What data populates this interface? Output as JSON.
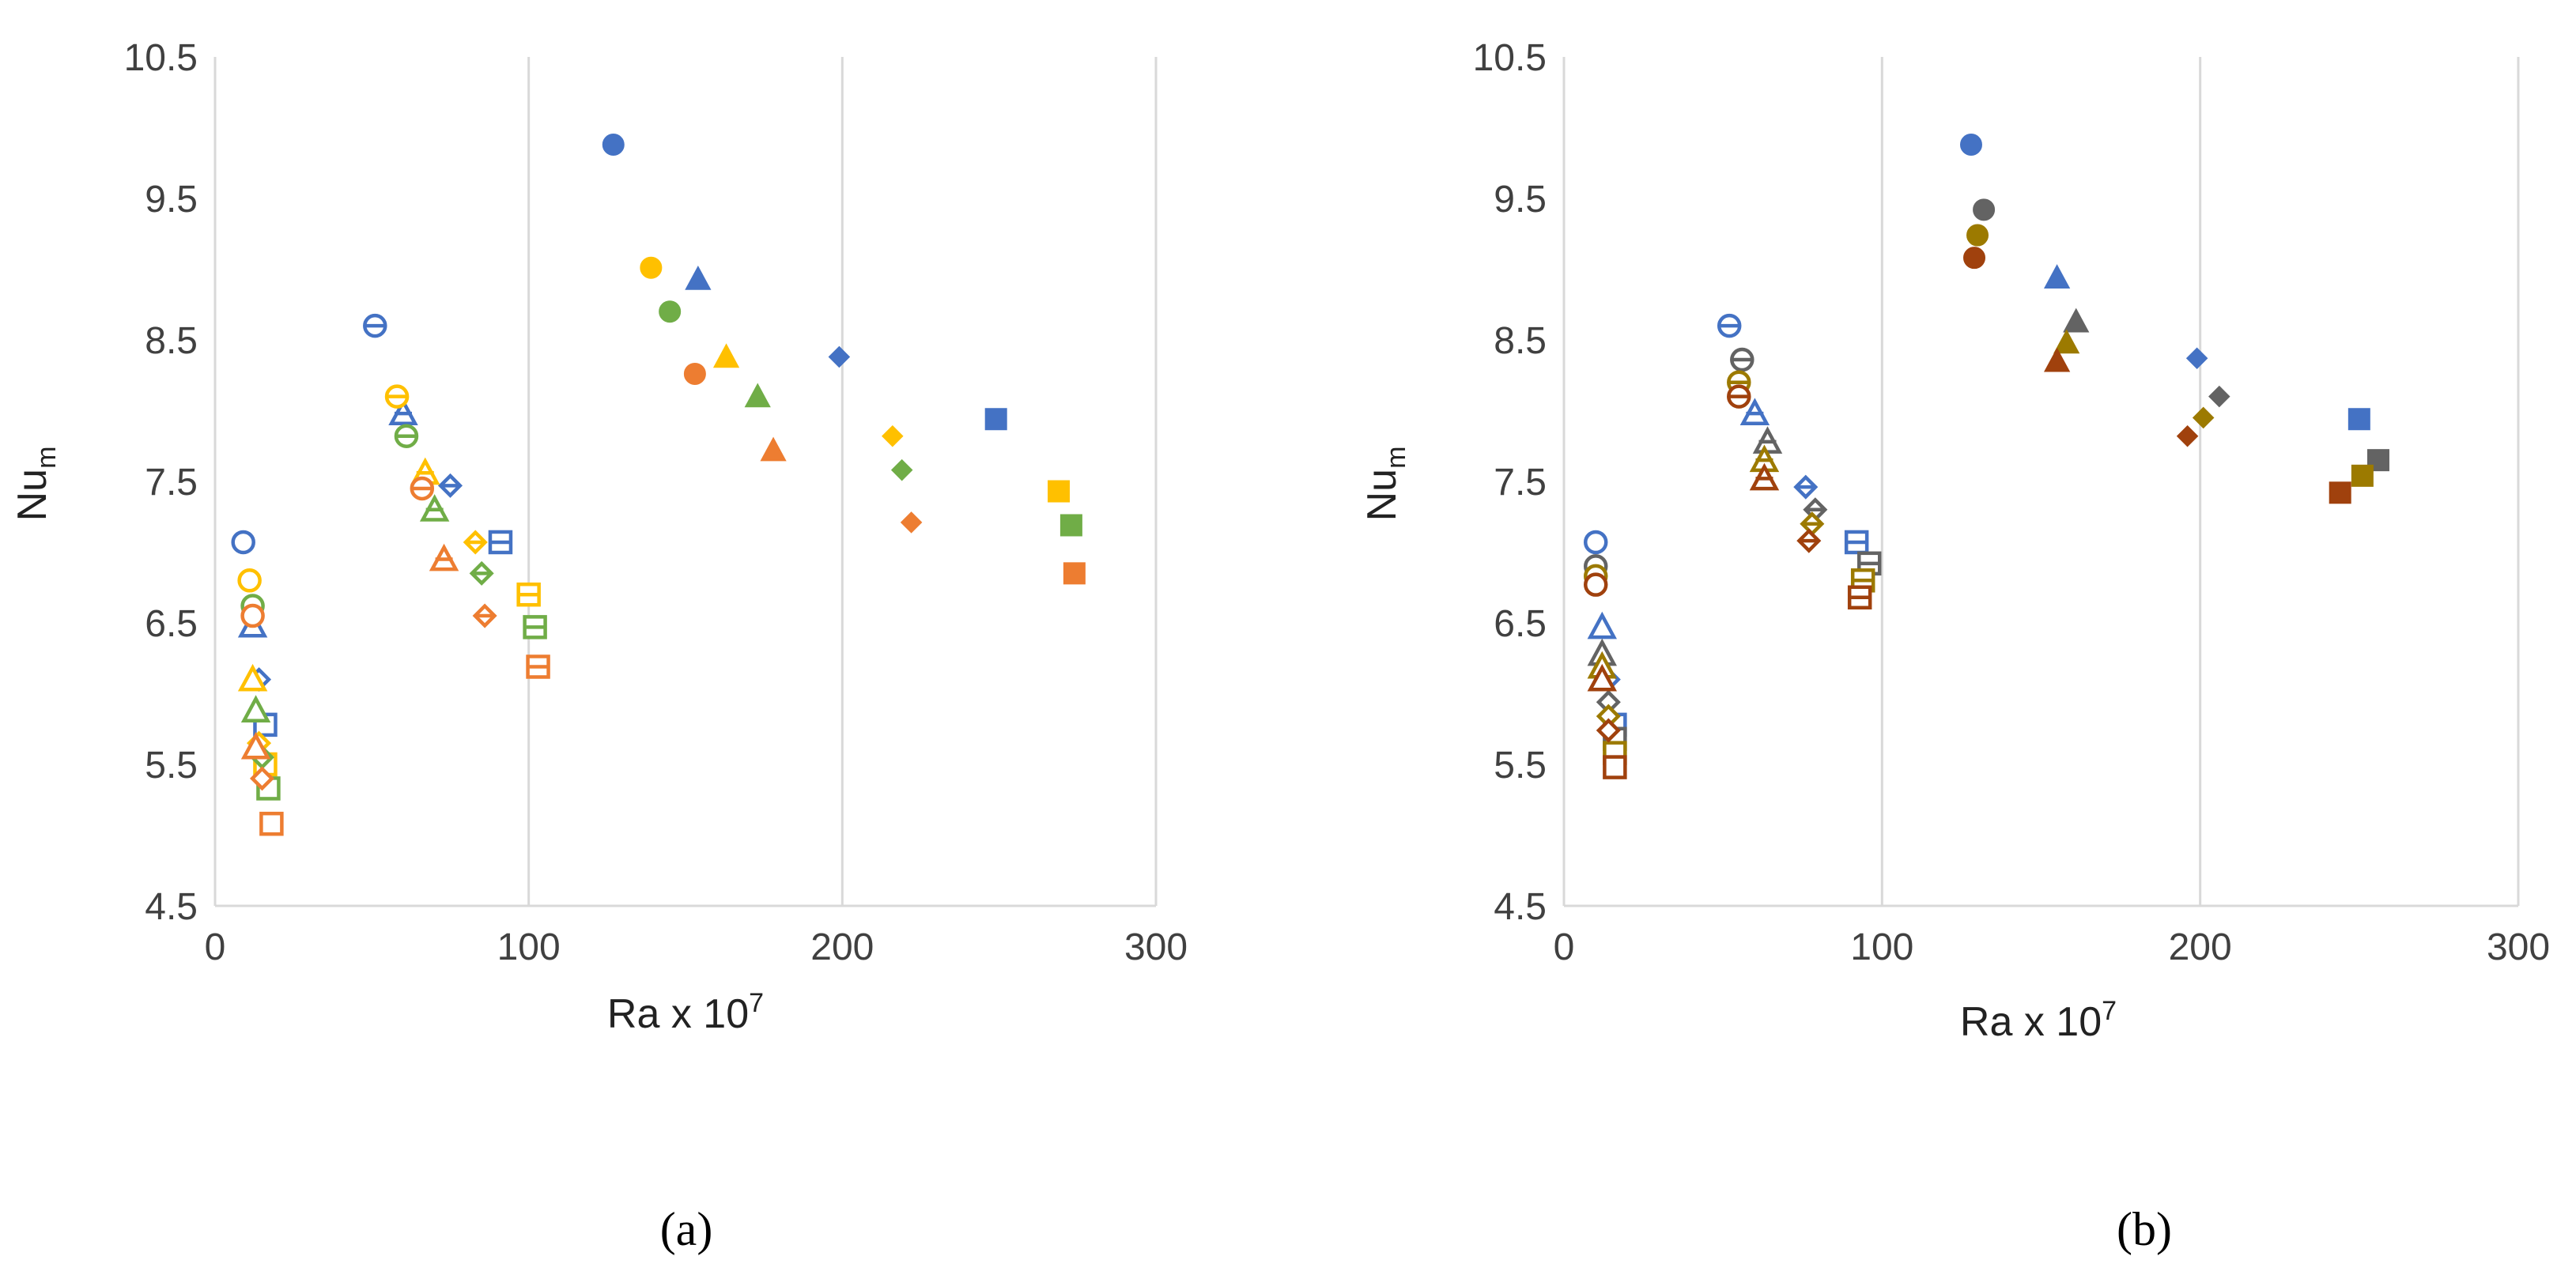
{
  "chart_data": [
    {
      "type": "scatter",
      "panel_label": "(a)",
      "xlabel": "Ra  x 10",
      "xlabel_exponent": "7",
      "ylabel": "Nu",
      "ylabel_subscript": "m",
      "xlim": [
        0,
        300
      ],
      "ylim": [
        4.5,
        10.5
      ],
      "xticks": [
        "0",
        "100",
        "200",
        "300"
      ],
      "yticks": [
        "4.5",
        "5.5",
        "6.5",
        "7.5",
        "8.5",
        "9.5",
        "10.5"
      ],
      "grid": "vertical",
      "legend": "none",
      "colors": {
        "blue": "#4472c4",
        "yellow": "#ffc000",
        "green": "#70ad47",
        "orange": "#ed7d31"
      },
      "series": [
        {
          "color": "blue",
          "filled": false,
          "points": [
            {
              "marker": "circle",
              "x": 9,
              "y": 7.07
            },
            {
              "marker": "triangle",
              "x": 12,
              "y": 6.48
            },
            {
              "marker": "diamond",
              "x": 14,
              "y": 6.1
            },
            {
              "marker": "square",
              "x": 16,
              "y": 5.78
            }
          ]
        },
        {
          "color": "yellow",
          "filled": false,
          "points": [
            {
              "marker": "circle",
              "x": 11,
              "y": 6.8
            },
            {
              "marker": "triangle",
              "x": 12,
              "y": 6.1
            },
            {
              "marker": "diamond",
              "x": 14,
              "y": 5.65
            },
            {
              "marker": "square",
              "x": 16,
              "y": 5.5
            }
          ]
        },
        {
          "color": "green",
          "filled": false,
          "points": [
            {
              "marker": "circle",
              "x": 12,
              "y": 6.62
            },
            {
              "marker": "triangle",
              "x": 13,
              "y": 5.88
            },
            {
              "marker": "diamond",
              "x": 15,
              "y": 5.55
            },
            {
              "marker": "square",
              "x": 17,
              "y": 5.33
            }
          ]
        },
        {
          "color": "orange",
          "filled": false,
          "points": [
            {
              "marker": "circle",
              "x": 12,
              "y": 6.55
            },
            {
              "marker": "triangle",
              "x": 13,
              "y": 5.62
            },
            {
              "marker": "diamond",
              "x": 15,
              "y": 5.4
            },
            {
              "marker": "square",
              "x": 18,
              "y": 5.08
            }
          ]
        },
        {
          "color": "blue",
          "filled": false,
          "points": [
            {
              "marker": "circle-bar",
              "x": 51,
              "y": 8.6
            },
            {
              "marker": "triangle-bar",
              "x": 60,
              "y": 7.98
            },
            {
              "marker": "diamond-bar",
              "x": 75,
              "y": 7.47
            },
            {
              "marker": "square-bar",
              "x": 91,
              "y": 7.07
            }
          ]
        },
        {
          "color": "yellow",
          "filled": false,
          "points": [
            {
              "marker": "circle-bar",
              "x": 58,
              "y": 8.1
            },
            {
              "marker": "triangle-bar",
              "x": 67,
              "y": 7.56
            },
            {
              "marker": "diamond-bar",
              "x": 83,
              "y": 7.07
            },
            {
              "marker": "square-bar",
              "x": 100,
              "y": 6.7
            }
          ]
        },
        {
          "color": "green",
          "filled": false,
          "points": [
            {
              "marker": "circle-bar",
              "x": 61,
              "y": 7.82
            },
            {
              "marker": "triangle-bar",
              "x": 70,
              "y": 7.3
            },
            {
              "marker": "diamond-bar",
              "x": 85,
              "y": 6.85
            },
            {
              "marker": "square-bar",
              "x": 102,
              "y": 6.47
            }
          ]
        },
        {
          "color": "orange",
          "filled": false,
          "points": [
            {
              "marker": "circle-bar",
              "x": 66,
              "y": 7.45
            },
            {
              "marker": "triangle-bar",
              "x": 73,
              "y": 6.95
            },
            {
              "marker": "diamond-bar",
              "x": 86,
              "y": 6.55
            },
            {
              "marker": "square-bar",
              "x": 103,
              "y": 6.19
            }
          ]
        },
        {
          "color": "blue",
          "filled": true,
          "points": [
            {
              "marker": "circle",
              "x": 127,
              "y": 9.88
            },
            {
              "marker": "triangle",
              "x": 154,
              "y": 8.93
            },
            {
              "marker": "diamond",
              "x": 199,
              "y": 8.38
            },
            {
              "marker": "square",
              "x": 249,
              "y": 7.94
            }
          ]
        },
        {
          "color": "yellow",
          "filled": true,
          "points": [
            {
              "marker": "circle",
              "x": 139,
              "y": 9.01
            },
            {
              "marker": "triangle",
              "x": 163,
              "y": 8.38
            },
            {
              "marker": "diamond",
              "x": 216,
              "y": 7.82
            },
            {
              "marker": "square",
              "x": 269,
              "y": 7.43
            }
          ]
        },
        {
          "color": "green",
          "filled": true,
          "points": [
            {
              "marker": "circle",
              "x": 145,
              "y": 8.7
            },
            {
              "marker": "triangle",
              "x": 173,
              "y": 8.1
            },
            {
              "marker": "diamond",
              "x": 219,
              "y": 7.58
            },
            {
              "marker": "square",
              "x": 273,
              "y": 7.19
            }
          ]
        },
        {
          "color": "orange",
          "filled": true,
          "points": [
            {
              "marker": "circle",
              "x": 153,
              "y": 8.26
            },
            {
              "marker": "triangle",
              "x": 178,
              "y": 7.72
            },
            {
              "marker": "diamond",
              "x": 222,
              "y": 7.21
            },
            {
              "marker": "square",
              "x": 274,
              "y": 6.85
            }
          ]
        }
      ]
    },
    {
      "type": "scatter",
      "panel_label": "(b)",
      "xlabel": "Ra  x 10",
      "xlabel_exponent": "7",
      "ylabel": "Nu",
      "ylabel_subscript": "m",
      "xlim": [
        0,
        300
      ],
      "ylim": [
        4.5,
        10.5
      ],
      "xticks": [
        "0",
        "100",
        "200",
        "300"
      ],
      "yticks": [
        "4.5",
        "5.5",
        "6.5",
        "7.5",
        "8.5",
        "9.5",
        "10.5"
      ],
      "grid": "vertical",
      "legend": "none",
      "colors": {
        "blue": "#4472c4",
        "olive": "#9c7a00",
        "gray": "#636363",
        "brown": "#a0410d"
      },
      "series": [
        {
          "color": "blue",
          "filled": false,
          "points": [
            {
              "marker": "circle",
              "x": 10,
              "y": 7.07
            },
            {
              "marker": "triangle",
              "x": 12,
              "y": 6.47
            },
            {
              "marker": "diamond",
              "x": 14,
              "y": 6.1
            },
            {
              "marker": "square",
              "x": 16,
              "y": 5.78
            }
          ]
        },
        {
          "color": "gray",
          "filled": false,
          "points": [
            {
              "marker": "circle",
              "x": 10,
              "y": 6.9
            },
            {
              "marker": "triangle",
              "x": 12,
              "y": 6.28
            },
            {
              "marker": "diamond",
              "x": 14,
              "y": 5.94
            },
            {
              "marker": "square",
              "x": 16,
              "y": 5.68
            }
          ]
        },
        {
          "color": "olive",
          "filled": false,
          "points": [
            {
              "marker": "circle",
              "x": 10,
              "y": 6.83
            },
            {
              "marker": "triangle",
              "x": 12,
              "y": 6.19
            },
            {
              "marker": "diamond",
              "x": 14,
              "y": 5.84
            },
            {
              "marker": "square",
              "x": 16,
              "y": 5.58
            }
          ]
        },
        {
          "color": "brown",
          "filled": false,
          "points": [
            {
              "marker": "circle",
              "x": 10,
              "y": 6.77
            },
            {
              "marker": "triangle",
              "x": 12,
              "y": 6.1
            },
            {
              "marker": "diamond",
              "x": 14,
              "y": 5.74
            },
            {
              "marker": "square",
              "x": 16,
              "y": 5.48
            }
          ]
        },
        {
          "color": "blue",
          "filled": false,
          "points": [
            {
              "marker": "circle-bar",
              "x": 52,
              "y": 8.6
            },
            {
              "marker": "triangle-bar",
              "x": 60,
              "y": 7.98
            },
            {
              "marker": "diamond-bar",
              "x": 76,
              "y": 7.46
            },
            {
              "marker": "square-bar",
              "x": 92,
              "y": 7.07
            }
          ]
        },
        {
          "color": "gray",
          "filled": false,
          "points": [
            {
              "marker": "circle-bar",
              "x": 56,
              "y": 8.36
            },
            {
              "marker": "triangle-bar",
              "x": 64,
              "y": 7.78
            },
            {
              "marker": "diamond-bar",
              "x": 79,
              "y": 7.3
            },
            {
              "marker": "square-bar",
              "x": 96,
              "y": 6.92
            }
          ]
        },
        {
          "color": "olive",
          "filled": false,
          "points": [
            {
              "marker": "circle-bar",
              "x": 55,
              "y": 8.2
            },
            {
              "marker": "triangle-bar",
              "x": 63,
              "y": 7.65
            },
            {
              "marker": "diamond-bar",
              "x": 78,
              "y": 7.2
            },
            {
              "marker": "square-bar",
              "x": 94,
              "y": 6.8
            }
          ]
        },
        {
          "color": "brown",
          "filled": false,
          "points": [
            {
              "marker": "circle-bar",
              "x": 55,
              "y": 8.1
            },
            {
              "marker": "triangle-bar",
              "x": 63,
              "y": 7.52
            },
            {
              "marker": "diamond-bar",
              "x": 77,
              "y": 7.08
            },
            {
              "marker": "square-bar",
              "x": 93,
              "y": 6.68
            }
          ]
        },
        {
          "color": "blue",
          "filled": true,
          "points": [
            {
              "marker": "circle",
              "x": 128,
              "y": 9.88
            },
            {
              "marker": "triangle",
              "x": 155,
              "y": 8.94
            },
            {
              "marker": "diamond",
              "x": 199,
              "y": 8.37
            },
            {
              "marker": "square",
              "x": 250,
              "y": 7.94
            }
          ]
        },
        {
          "color": "gray",
          "filled": true,
          "points": [
            {
              "marker": "circle",
              "x": 132,
              "y": 9.42
            },
            {
              "marker": "triangle",
              "x": 161,
              "y": 8.63
            },
            {
              "marker": "diamond",
              "x": 206,
              "y": 8.1
            },
            {
              "marker": "square",
              "x": 256,
              "y": 7.65
            }
          ]
        },
        {
          "color": "olive",
          "filled": true,
          "points": [
            {
              "marker": "circle",
              "x": 130,
              "y": 9.24
            },
            {
              "marker": "triangle",
              "x": 158,
              "y": 8.48
            },
            {
              "marker": "diamond",
              "x": 201,
              "y": 7.95
            },
            {
              "marker": "square",
              "x": 251,
              "y": 7.54
            }
          ]
        },
        {
          "color": "brown",
          "filled": true,
          "points": [
            {
              "marker": "circle",
              "x": 129,
              "y": 9.08
            },
            {
              "marker": "triangle",
              "x": 155,
              "y": 8.35
            },
            {
              "marker": "diamond",
              "x": 196,
              "y": 7.82
            },
            {
              "marker": "square",
              "x": 244,
              "y": 7.42
            }
          ]
        }
      ]
    }
  ]
}
